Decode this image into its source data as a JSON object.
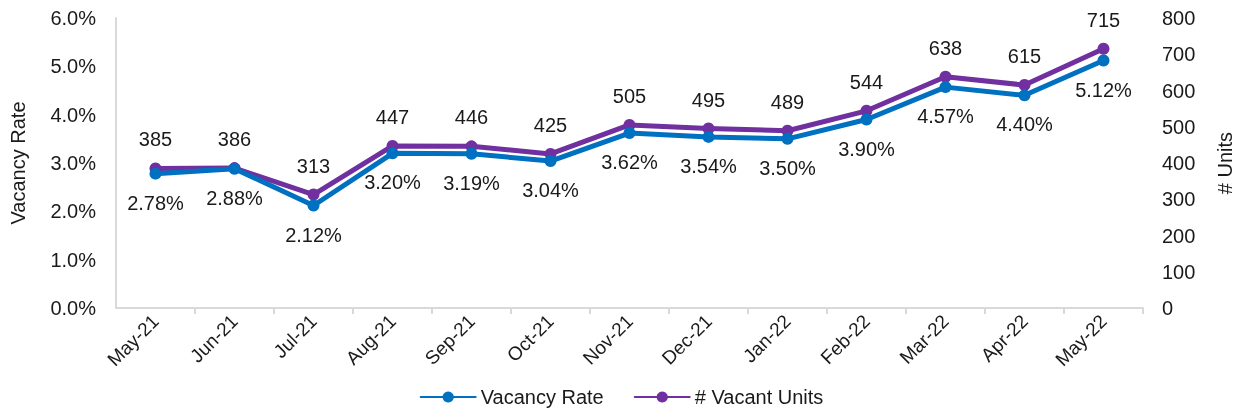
{
  "chart_data": {
    "type": "line",
    "categories": [
      "May-21",
      "Jun-21",
      "Jul-21",
      "Aug-21",
      "Sep-21",
      "Oct-21",
      "Nov-21",
      "Dec-21",
      "Jan-22",
      "Feb-22",
      "Mar-22",
      "Apr-22",
      "May-22"
    ],
    "series": [
      {
        "name": "Vacancy Rate",
        "color": "#0070c0",
        "values": [
          2.78,
          2.88,
          2.12,
          3.2,
          3.19,
          3.04,
          3.62,
          3.54,
          3.5,
          3.9,
          4.57,
          4.4,
          5.12
        ],
        "value_labels": [
          "2.78%",
          "2.88%",
          "2.12%",
          "3.20%",
          "3.19%",
          "3.04%",
          "3.62%",
          "3.54%",
          "3.50%",
          "3.90%",
          "4.57%",
          "4.40%",
          "5.12%"
        ]
      },
      {
        "name": "# Vacant Units",
        "color": "#7030a0",
        "axis": "y2",
        "values": [
          385,
          386,
          313,
          447,
          446,
          425,
          505,
          495,
          489,
          544,
          638,
          615,
          715
        ],
        "value_labels": [
          "385",
          "386",
          "313",
          "447",
          "446",
          "425",
          "505",
          "495",
          "489",
          "544",
          "638",
          "615",
          "715"
        ]
      }
    ],
    "ylabel": "Vacancy Rate",
    "y2label": "# Units",
    "ylim": [
      0,
      6
    ],
    "yticks": [
      {
        "value": 0,
        "label": "0.0%"
      },
      {
        "value": 1,
        "label": "1.0%"
      },
      {
        "value": 2,
        "label": "2.0%"
      },
      {
        "value": 3,
        "label": "3.0%"
      },
      {
        "value": 4,
        "label": "4.0%"
      },
      {
        "value": 5,
        "label": "5.0%"
      },
      {
        "value": 6,
        "label": "6.0%"
      }
    ],
    "y2lim": [
      0,
      800
    ],
    "y2ticks": [
      0,
      100,
      200,
      300,
      400,
      500,
      600,
      700,
      800
    ],
    "grid": false,
    "legend": "bottom",
    "marker": "circle",
    "line_style": "solid"
  }
}
